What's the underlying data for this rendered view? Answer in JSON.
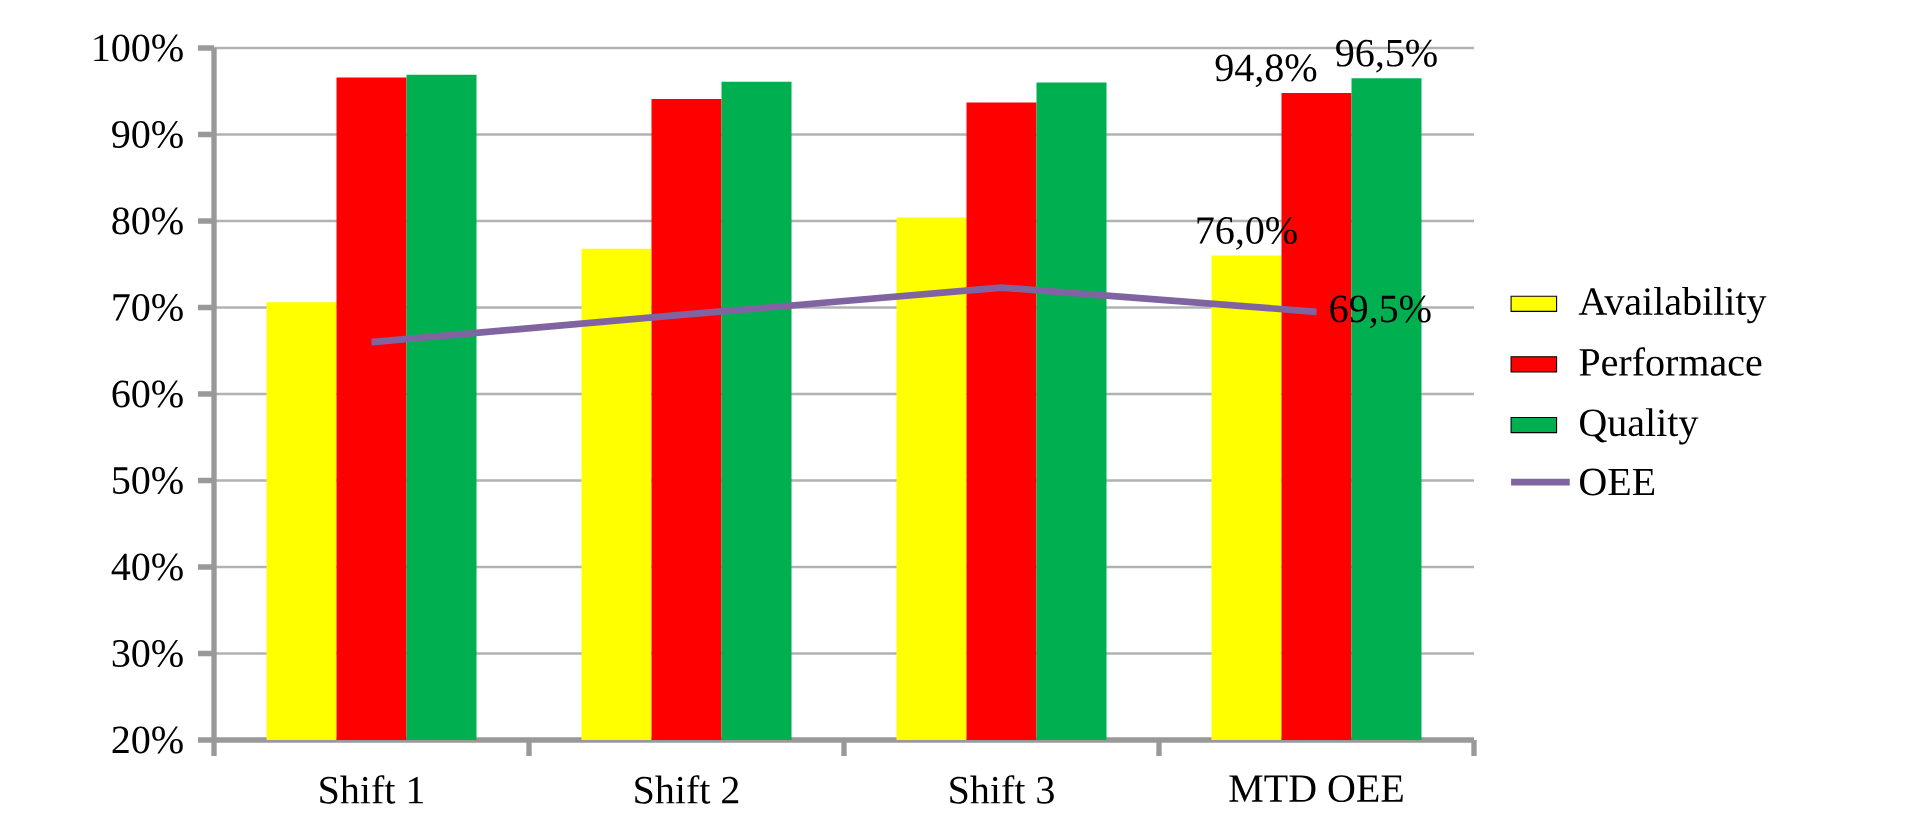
{
  "chart_data": {
    "type": "bar",
    "categories": [
      "Shift 1",
      "Shift 2",
      "Shift 3",
      "MTD OEE"
    ],
    "series": [
      {
        "name": "Availability",
        "color": "#ffff00",
        "values": [
          70.6,
          76.8,
          80.4,
          76.0
        ],
        "value_labels": [
          null,
          null,
          null,
          "76,0%"
        ]
      },
      {
        "name": "Performace",
        "color": "#ff0000",
        "values": [
          96.6,
          94.1,
          93.7,
          94.8
        ],
        "value_labels": [
          null,
          null,
          null,
          "94,8%"
        ]
      },
      {
        "name": "Quality",
        "color": "#00b050",
        "values": [
          96.9,
          96.1,
          96.0,
          96.5
        ],
        "value_labels": [
          null,
          null,
          null,
          "96,5%"
        ]
      },
      {
        "name": "OEE",
        "type": "line",
        "color": "#8064a2",
        "values": [
          66.0,
          69.2,
          72.3,
          69.5
        ],
        "value_labels": [
          null,
          null,
          null,
          "69,5%"
        ]
      }
    ],
    "ylim": [
      20,
      100
    ],
    "yticks": [
      {
        "value": 20,
        "label": "20%"
      },
      {
        "value": 30,
        "label": "30%"
      },
      {
        "value": 40,
        "label": "40%"
      },
      {
        "value": 50,
        "label": "50%"
      },
      {
        "value": 60,
        "label": "60%"
      },
      {
        "value": 70,
        "label": "70%"
      },
      {
        "value": 80,
        "label": "80%"
      },
      {
        "value": 90,
        "label": "90%"
      },
      {
        "value": 100,
        "label": "100%"
      }
    ],
    "grid": "y",
    "legend": "right",
    "marker": "none"
  }
}
